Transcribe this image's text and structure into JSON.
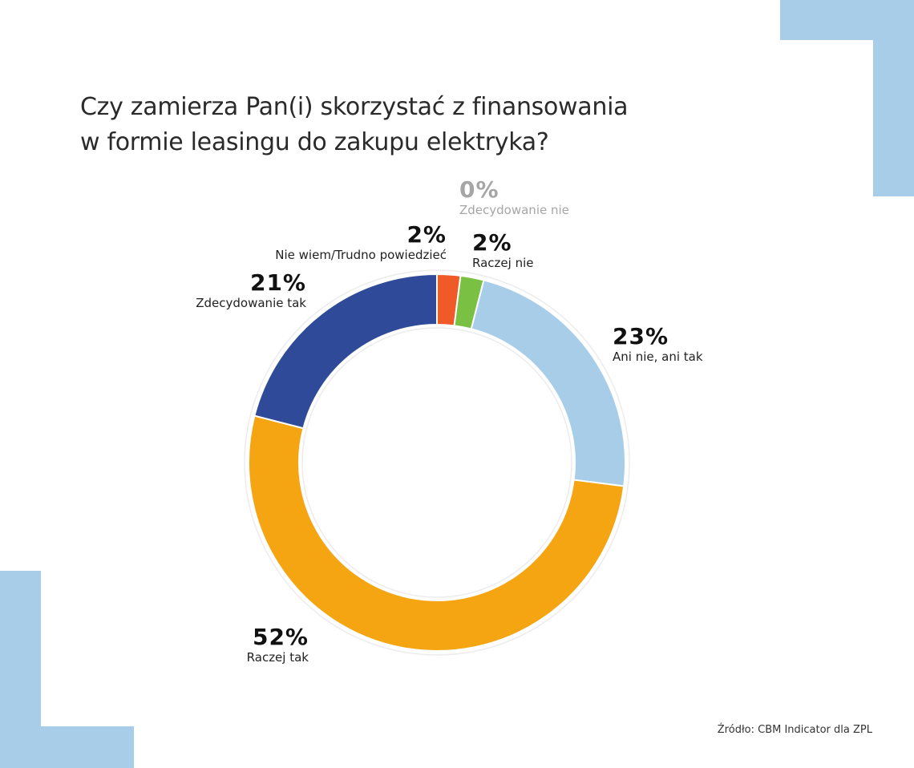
{
  "title": {
    "line1": "Czy zamierza Pan(i) skorzystać z finansowania",
    "line2": "w formie leasingu do zakupu elektryka?"
  },
  "labels": {
    "nie_wiem": {
      "pct": "2%",
      "name": "Nie wiem/Trudno powiedzieć"
    },
    "raczej_nie": {
      "pct": "2%",
      "name": "Raczej nie"
    },
    "zdecydowanie_nie": {
      "pct": "0%",
      "name": "Zdecydowanie nie"
    },
    "ani": {
      "pct": "23%",
      "name": "Ani nie, ani tak"
    },
    "raczej_tak": {
      "pct": "52%",
      "name": "Raczej tak"
    },
    "zdecydowanie_tak": {
      "pct": "21%",
      "name": "Zdecydowanie tak"
    }
  },
  "source": "Źródło: CBM Indicator dla ZPL",
  "colors": {
    "decor": "#a8cde9",
    "nie_wiem": "#f05a28",
    "raczej_nie": "#7ac143",
    "zdecydowanie_nie": "#a6a6a6",
    "ani": "#a8cde9",
    "raczej_tak": "#f5a511",
    "zdecydowanie_tak": "#2e4a98"
  },
  "chart_data": {
    "type": "pie",
    "subtype": "donut",
    "title": "Czy zamierza Pan(i) skorzystać z finansowania w formie leasingu do zakupu elektryka?",
    "categories": [
      "Nie wiem/Trudno powiedzieć",
      "Raczej nie",
      "Zdecydowanie nie",
      "Ani nie, ani tak",
      "Raczej tak",
      "Zdecydowanie tak"
    ],
    "values": [
      2,
      2,
      0,
      23,
      52,
      21
    ],
    "unit": "%",
    "colors": [
      "#f05a28",
      "#7ac143",
      "#a6a6a6",
      "#a8cde9",
      "#f5a511",
      "#2e4a98"
    ],
    "start_angle": "top, clockwise",
    "source": "Źródło: CBM Indicator dla ZPL"
  }
}
